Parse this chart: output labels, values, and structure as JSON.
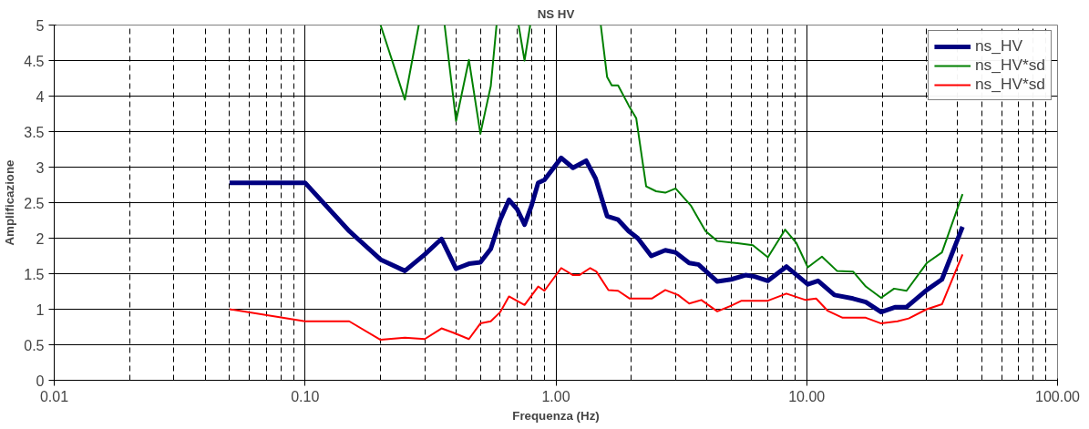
{
  "chart_data": {
    "type": "line",
    "title": "NS HV",
    "xlabel": "Frequenza (Hz)",
    "ylabel": "Amplificazione",
    "log": "x",
    "grid": true,
    "legend": "top right",
    "line_style": "solid",
    "marker": "none",
    "xlim": [
      0.01,
      100
    ],
    "xticks": [
      {
        "value": 0.01,
        "label": "0.01"
      },
      {
        "value": 0.1,
        "label": "0.10"
      },
      {
        "value": 1,
        "label": "1.00"
      },
      {
        "value": 10,
        "label": "10.00"
      },
      {
        "value": 100,
        "label": "100.00"
      }
    ],
    "ylim": [
      0,
      5
    ],
    "yticks": [
      0,
      0.5,
      1,
      1.5,
      2,
      2.5,
      3,
      3.5,
      4,
      4.5,
      5
    ],
    "series": [
      {
        "name": "ns_HV",
        "color": "#000080",
        "x": [
          0.05,
          0.1,
          0.15,
          0.2,
          0.25,
          0.3,
          0.35,
          0.4,
          0.45,
          0.5,
          0.55,
          0.6,
          0.65,
          0.7,
          0.75,
          0.8,
          0.85,
          0.9,
          1.05,
          1.17,
          1.32,
          1.44,
          1.6,
          1.77,
          1.95,
          2.12,
          2.4,
          2.73,
          3.0,
          3.4,
          3.7,
          4.4,
          5.0,
          5.7,
          6.2,
          7.0,
          8.3,
          10.1,
          11.1,
          12.9,
          15.3,
          17.2,
          19.8,
          22.6,
          25.0,
          30.1,
          34.6,
          41.8
        ],
        "values": [
          2.78,
          2.78,
          2.1,
          1.7,
          1.54,
          1.77,
          1.99,
          1.57,
          1.64,
          1.66,
          1.85,
          2.26,
          2.54,
          2.41,
          2.19,
          2.46,
          2.78,
          2.82,
          3.13,
          2.99,
          3.09,
          2.84,
          2.31,
          2.26,
          2.1,
          2.0,
          1.75,
          1.83,
          1.8,
          1.65,
          1.63,
          1.39,
          1.42,
          1.48,
          1.46,
          1.4,
          1.6,
          1.35,
          1.4,
          1.2,
          1.15,
          1.1,
          0.96,
          1.03,
          1.03,
          1.27,
          1.42,
          2.16
        ]
      },
      {
        "name": "ns_HV*sd",
        "color": "#008000",
        "x": [
          0.2,
          0.25,
          0.284,
          0.32,
          0.36,
          0.4,
          0.45,
          0.5,
          0.55,
          0.58,
          0.65,
          0.71,
          0.75,
          0.79,
          1.1,
          1.51,
          1.6,
          1.67,
          1.77,
          1.95,
          2.09,
          2.29,
          2.51,
          2.73,
          3.0,
          3.45,
          3.95,
          4.4,
          5.3,
          6.1,
          7.0,
          8.2,
          9.1,
          10.1,
          11.5,
          13.2,
          15.3,
          17.2,
          19.8,
          22.3,
          25.0,
          30.1,
          34.6,
          41.8
        ],
        "values": [
          5,
          3.95,
          5,
          null,
          5,
          3.65,
          4.51,
          3.47,
          4.14,
          5,
          null,
          5,
          4.5,
          5,
          null,
          5,
          4.27,
          4.15,
          4.15,
          3.87,
          3.69,
          2.73,
          2.66,
          2.64,
          2.7,
          2.46,
          2.1,
          1.96,
          1.93,
          1.9,
          1.73,
          2.12,
          1.93,
          1.59,
          1.74,
          1.54,
          1.53,
          1.32,
          1.16,
          1.29,
          1.26,
          1.65,
          1.8,
          2.62
        ]
      },
      {
        "name": "ns_HV*sd",
        "color": "#ff0000",
        "x": [
          0.05,
          0.1,
          0.15,
          0.2,
          0.25,
          0.3,
          0.35,
          0.39,
          0.45,
          0.5,
          0.55,
          0.6,
          0.65,
          0.75,
          0.85,
          0.9,
          1.05,
          1.17,
          1.24,
          1.37,
          1.45,
          1.62,
          1.77,
          1.97,
          2.18,
          2.41,
          2.73,
          3.07,
          3.4,
          3.8,
          4.4,
          5.0,
          5.5,
          6.2,
          7.0,
          8.3,
          9.9,
          10.9,
          12.1,
          13.9,
          15.8,
          17.2,
          19.8,
          23.0,
          25.5,
          30.1,
          34.6,
          41.8
        ],
        "values": [
          1.0,
          0.83,
          0.83,
          0.57,
          0.6,
          0.58,
          0.73,
          0.67,
          0.58,
          0.8,
          0.83,
          0.96,
          1.18,
          1.06,
          1.32,
          1.26,
          1.58,
          1.48,
          1.48,
          1.58,
          1.53,
          1.27,
          1.26,
          1.15,
          1.15,
          1.15,
          1.27,
          1.2,
          1.08,
          1.13,
          0.97,
          1.05,
          1.12,
          1.12,
          1.12,
          1.22,
          1.13,
          1.15,
          0.98,
          0.88,
          0.88,
          0.88,
          0.8,
          0.83,
          0.87,
          1.0,
          1.07,
          1.77
        ]
      }
    ]
  }
}
